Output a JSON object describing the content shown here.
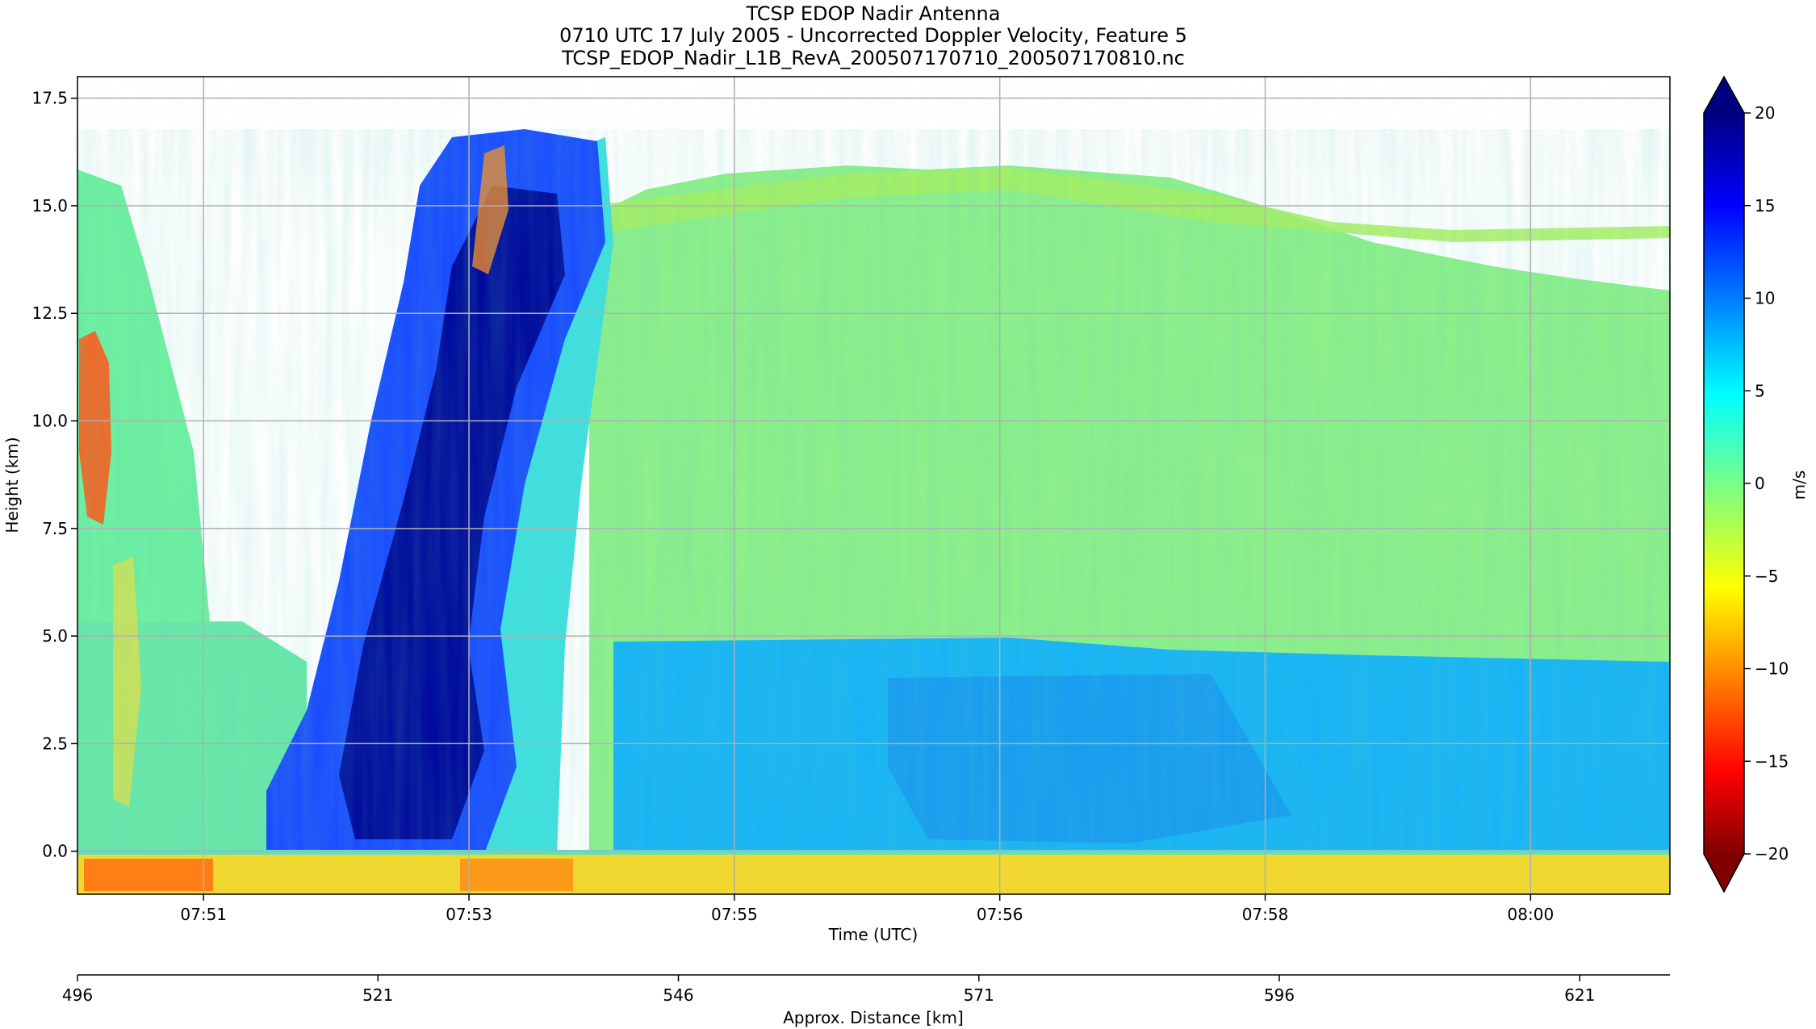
{
  "chart_data": {
    "type": "heatmap",
    "title_lines": [
      "TCSP EDOP Nadir Antenna",
      "0710 UTC 17 July 2005 - Uncorrected Doppler Velocity, Feature 5",
      "TCSP_EDOP_Nadir_L1B_RevA_200507170710_200507170810.nc"
    ],
    "xlabel": "Time (UTC)",
    "ylabel": "Height (km)",
    "x_ticks": [
      "07:51",
      "07:53",
      "07:55",
      "07:56",
      "07:58",
      "08:00"
    ],
    "y_ticks": [
      "0.0",
      "2.5",
      "5.0",
      "7.5",
      "10.0",
      "12.5",
      "15.0",
      "17.5"
    ],
    "ylim": [
      -1.0,
      18.0
    ],
    "y_tick_values": [
      0.0,
      2.5,
      5.0,
      7.5,
      10.0,
      12.5,
      15.0,
      17.5
    ],
    "x_tick_minutes": [
      0.95,
      2.95,
      4.95,
      6.95,
      8.95,
      10.95
    ],
    "xlim_minutes": [
      0.0,
      12.0
    ],
    "secondary_axis": {
      "label": "Approx. Distance [km]",
      "ticks": [
        "496",
        "521",
        "546",
        "571",
        "596",
        "621"
      ],
      "values": [
        496,
        521,
        546,
        571,
        596,
        621
      ],
      "range": [
        496,
        628.5
      ]
    },
    "colorbar": {
      "label": "m/s",
      "ticks": [
        "20",
        "15",
        "10",
        "5",
        "0",
        "−5",
        "−10",
        "−15",
        "−20"
      ],
      "values": [
        20,
        15,
        10,
        5,
        0,
        -5,
        -10,
        -15,
        -20
      ],
      "range": [
        -20,
        20
      ],
      "colormap": "jet",
      "extend": "both"
    },
    "features": [
      {
        "name": "updraft-core",
        "time_minutes": [
          2.0,
          3.7
        ],
        "height_km": [
          0,
          16.5
        ],
        "velocity": 18
      },
      {
        "name": "cirrus-anvil-top",
        "height_km": [
          14.5,
          16.2
        ],
        "velocity": 0
      },
      {
        "name": "melting-layer",
        "height_km": 4.8,
        "velocity": 5
      },
      {
        "name": "surface-return",
        "height_km": [
          -1.0,
          0.0
        ],
        "velocity": -10
      },
      {
        "name": "downdraft-left-edge",
        "time_minutes": [
          0.0,
          0.3
        ],
        "height_km": [
          6.5,
          11.5
        ],
        "velocity": -14
      }
    ],
    "grid": true
  }
}
